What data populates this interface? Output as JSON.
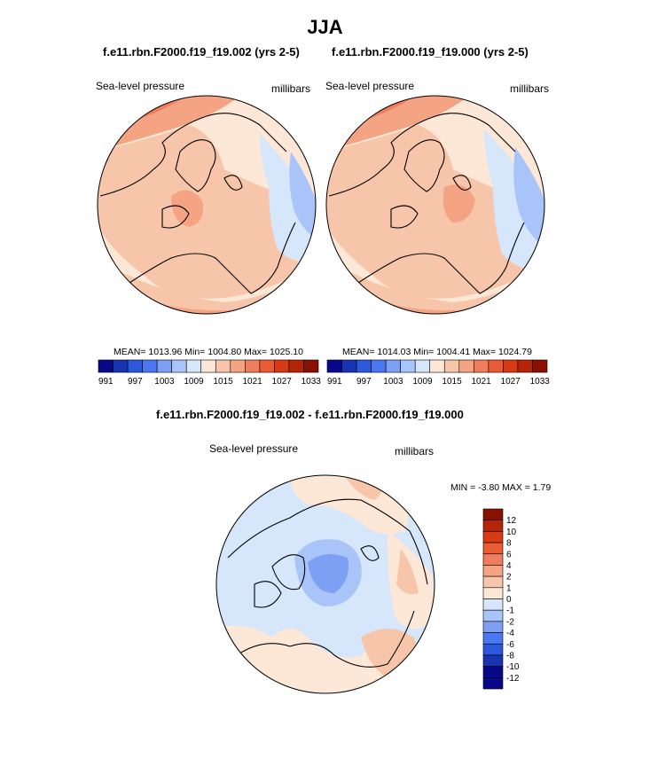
{
  "figure": {
    "season": "JJA",
    "difference_title": "f.e11.rbn.F2000.f19_f19.002 - f.e11.rbn.F2000.f19_f19.000"
  },
  "panels": [
    {
      "case_title": "f.e11.rbn.F2000.f19_f19.002 (yrs 2-5)",
      "variable": "Sea-level pressure",
      "units": "millibars",
      "stats": "MEAN= 1013.96  Min= 1004.80  Max= 1025.10",
      "mean": 1013.96,
      "min": 1004.8,
      "max": 1025.1
    },
    {
      "case_title": "f.e11.rbn.F2000.f19_f19.000 (yrs 2-5)",
      "variable": "Sea-level pressure",
      "units": "millibars",
      "stats": "MEAN= 1014.03  Min= 1004.41  Max= 1024.79",
      "mean": 1014.03,
      "min": 1004.41,
      "max": 1024.79
    }
  ],
  "difference_panel": {
    "variable": "Sea-level pressure",
    "units": "millibars",
    "stats": "MIN =  -3.80 MAX =   1.79",
    "min": -3.8,
    "max": 1.79
  },
  "colorbar_main": {
    "labels": [
      "991",
      "997",
      "1003",
      "1009",
      "1015",
      "1021",
      "1027",
      "1033"
    ],
    "colors": [
      "#08088a",
      "#1a33b3",
      "#2c58dc",
      "#4a78f0",
      "#7da0f5",
      "#a9c4f8",
      "#d6e6fb",
      "#fde8d8",
      "#f7c6aa",
      "#f4a482",
      "#f07e5c",
      "#ea5a33",
      "#d83a14",
      "#b52406",
      "#8a1000"
    ]
  },
  "colorbar_diff": {
    "labels": [
      "12",
      "10",
      "8",
      "6",
      "4",
      "2",
      "1",
      "0",
      "-1",
      "-2",
      "-4",
      "-6",
      "-8",
      "-10",
      "-12"
    ],
    "colors": [
      "#8a1000",
      "#b52406",
      "#d83a14",
      "#ea5a33",
      "#f07e5c",
      "#f4a482",
      "#f7c6aa",
      "#fde8d8",
      "#d6e6fb",
      "#a9c4f8",
      "#7da0f5",
      "#4a78f0",
      "#2c58dc",
      "#1a33b3",
      "#08088a"
    ]
  }
}
